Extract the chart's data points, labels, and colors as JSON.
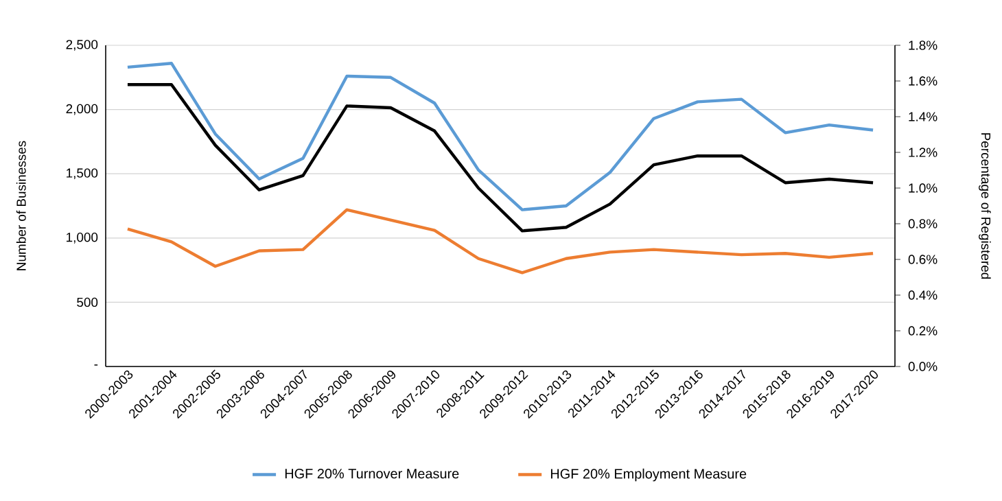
{
  "chart_data": {
    "type": "line",
    "ylabel": "Number of Businesses",
    "y2label": "Percentage of Registered",
    "categories": [
      "2000-2003",
      "2001-2004",
      "2002-2005",
      "2003-2006",
      "2004-2007",
      "2005-2008",
      "2006-2009",
      "2007-2010",
      "2008-2011",
      "2009-2012",
      "2010-2013",
      "2011-2014",
      "2012-2015",
      "2013-2016",
      "2014-2017",
      "2015-2018",
      "2016-2019",
      "2017-2020"
    ],
    "series": [
      {
        "name": "HGF 20% Turnover Measure",
        "color": "#5b9bd5",
        "values": [
          2330,
          2360,
          1810,
          1460,
          1620,
          2260,
          2250,
          2050,
          1530,
          1220,
          1250,
          1510,
          1930,
          2060,
          2080,
          1820,
          1880,
          1840
        ]
      },
      {
        "name": "HGF 20% Employment Measure",
        "color": "#ed7d31",
        "values": [
          1070,
          970,
          780,
          900,
          910,
          1220,
          1140,
          1060,
          840,
          730,
          840,
          890,
          910,
          890,
          870,
          880,
          850,
          880
        ]
      },
      {
        "color": "#000000",
        "axis": "y2",
        "values": [
          1.58,
          1.58,
          1.24,
          0.99,
          1.07,
          1.46,
          1.45,
          1.32,
          1.0,
          0.76,
          0.78,
          0.91,
          1.13,
          1.18,
          1.18,
          1.03,
          1.05,
          1.03
        ]
      }
    ],
    "ylim": [
      0,
      2500
    ],
    "yticks": [
      {
        "value": 0,
        "label": "-"
      },
      {
        "value": 500,
        "label": "500"
      },
      {
        "value": 1000,
        "label": "1,000"
      },
      {
        "value": 1500,
        "label": "1,500"
      },
      {
        "value": 2000,
        "label": "2,000"
      },
      {
        "value": 2500,
        "label": "2,500"
      }
    ],
    "y2lim": [
      0,
      1.8
    ],
    "y2ticks": [
      {
        "value": 0,
        "label": "0.0%"
      },
      {
        "value": 0.2,
        "label": "0.2%"
      },
      {
        "value": 0.4,
        "label": "0.4%"
      },
      {
        "value": 0.6,
        "label": "0.6%"
      },
      {
        "value": 0.8,
        "label": "0.8%"
      },
      {
        "value": 1.0,
        "label": "1.0%"
      },
      {
        "value": 1.2,
        "label": "1.2%"
      },
      {
        "value": 1.4,
        "label": "1.4%"
      },
      {
        "value": 1.6,
        "label": "1.6%"
      },
      {
        "value": 1.8,
        "label": "1.8%"
      }
    ],
    "grid": "y",
    "legend": "bottom",
    "marker": "none",
    "line_style": "solid"
  }
}
